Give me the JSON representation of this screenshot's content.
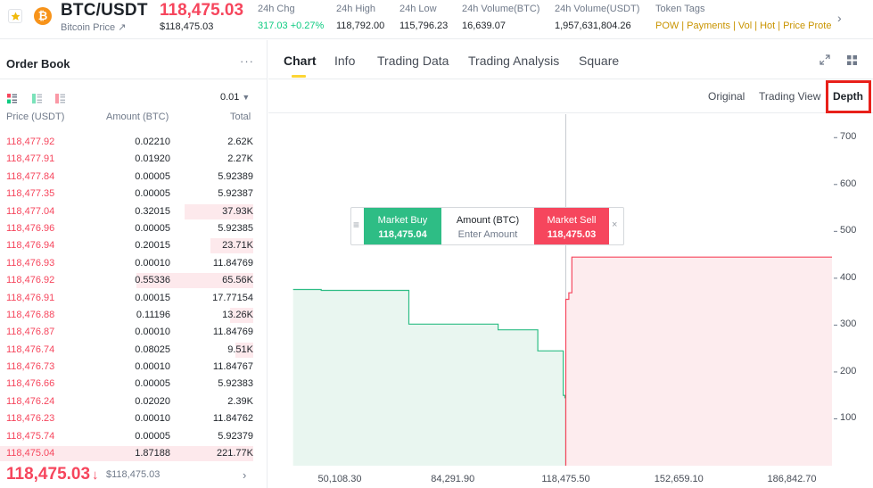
{
  "header": {
    "pair": "BTC/USDT",
    "pair_sub": "Bitcoin Price ↗",
    "coin_glyph": "₿",
    "last_price": "118,475.03",
    "last_price_usd": "$118,475.03",
    "stats": [
      {
        "label": "24h Chg",
        "value": "317.03 +0.27%",
        "positive": true
      },
      {
        "label": "24h High",
        "value": "118,792.00"
      },
      {
        "label": "24h Low",
        "value": "115,796.23"
      },
      {
        "label": "24h Volume(BTC)",
        "value": "16,639.07"
      },
      {
        "label": "24h Volume(USDT)",
        "value": "1,957,631,804.26"
      }
    ],
    "token_tags_label": "Token Tags",
    "token_tags": [
      "POW",
      "Payments",
      "Vol",
      "Hot",
      "Price Prote"
    ]
  },
  "order_book": {
    "title": "Order Book",
    "more": "···",
    "precision": "0.01",
    "columns": [
      "Price (USDT)",
      "Amount (BTC)",
      "Total"
    ],
    "rows": [
      {
        "price": "118,477.92",
        "amount": "0.02210",
        "total": "2.62K",
        "depth": 0
      },
      {
        "price": "118,477.91",
        "amount": "0.01920",
        "total": "2.27K",
        "depth": 0
      },
      {
        "price": "118,477.84",
        "amount": "0.00005",
        "total": "5.92389",
        "depth": 0
      },
      {
        "price": "118,477.35",
        "amount": "0.00005",
        "total": "5.92387",
        "depth": 0
      },
      {
        "price": "118,477.04",
        "amount": "0.32015",
        "total": "37.93K",
        "depth": 0.27
      },
      {
        "price": "118,476.96",
        "amount": "0.00005",
        "total": "5.92385",
        "depth": 0
      },
      {
        "price": "118,476.94",
        "amount": "0.20015",
        "total": "23.71K",
        "depth": 0.17
      },
      {
        "price": "118,476.93",
        "amount": "0.00010",
        "total": "11.84769",
        "depth": 0
      },
      {
        "price": "118,476.92",
        "amount": "0.55336",
        "total": "65.56K",
        "depth": 0.46
      },
      {
        "price": "118,476.91",
        "amount": "0.00015",
        "total": "17.77154",
        "depth": 0
      },
      {
        "price": "118,476.88",
        "amount": "0.11196",
        "total": "13.26K",
        "depth": 0.09
      },
      {
        "price": "118,476.87",
        "amount": "0.00010",
        "total": "11.84769",
        "depth": 0
      },
      {
        "price": "118,476.74",
        "amount": "0.08025",
        "total": "9.51K",
        "depth": 0.07
      },
      {
        "price": "118,476.73",
        "amount": "0.00010",
        "total": "11.84767",
        "depth": 0
      },
      {
        "price": "118,476.66",
        "amount": "0.00005",
        "total": "5.92383",
        "depth": 0
      },
      {
        "price": "118,476.24",
        "amount": "0.02020",
        "total": "2.39K",
        "depth": 0
      },
      {
        "price": "118,476.23",
        "amount": "0.00010",
        "total": "11.84762",
        "depth": 0
      },
      {
        "price": "118,475.74",
        "amount": "0.00005",
        "total": "5.92379",
        "depth": 0
      },
      {
        "price": "118,475.04",
        "amount": "1.87188",
        "total": "221.77K",
        "depth": 1.0
      }
    ],
    "last_price": "118,475.03",
    "last_price_arrow": "↓",
    "last_price_usd": "$118,475.03",
    "chevron": "›"
  },
  "tabs": [
    "Chart",
    "Info",
    "Trading Data",
    "Trading Analysis",
    "Square"
  ],
  "active_tab": "Chart",
  "views": [
    "Original",
    "Trading View",
    "Depth"
  ],
  "active_view": "Depth",
  "market_widget": {
    "buy_label": "Market Buy",
    "buy_price": "118,475.04",
    "amount_label": "Amount (BTC)",
    "amount_placeholder": "Enter Amount",
    "sell_label": "Market Sell",
    "sell_price": "118,475.03",
    "close": "×",
    "handle": "≡"
  },
  "colors": {
    "bid": "#2ebd85",
    "ask": "#f6465d",
    "accent": "#fcd535",
    "highlight": "#e8201a"
  },
  "chart_data": {
    "type": "area",
    "y_ticks": [
      700,
      600,
      500,
      400,
      300,
      200,
      100
    ],
    "x_ticks": [
      "50,108.30",
      "84,291.90",
      "118,475.50",
      "152,659.10",
      "186,842.70"
    ],
    "ylim": [
      0,
      750
    ],
    "mid_price": 118475.5,
    "series": [
      {
        "side": "bid",
        "points": [
          [
            36000,
            376
          ],
          [
            44500,
            376
          ],
          [
            44500,
            374
          ],
          [
            71000,
            374
          ],
          [
            71000,
            302
          ],
          [
            98000,
            302
          ],
          [
            98000,
            290
          ],
          [
            110000,
            290
          ],
          [
            110000,
            245
          ],
          [
            117700,
            245
          ],
          [
            117700,
            150
          ],
          [
            118200,
            150
          ],
          [
            118200,
            145
          ],
          [
            118475,
            145
          ],
          [
            118475,
            0
          ]
        ]
      },
      {
        "side": "ask",
        "points": [
          [
            118476,
            0
          ],
          [
            118476,
            355
          ],
          [
            119400,
            355
          ],
          [
            119400,
            369
          ],
          [
            120300,
            369
          ],
          [
            120300,
            445
          ],
          [
            200000,
            445
          ]
        ]
      }
    ]
  }
}
